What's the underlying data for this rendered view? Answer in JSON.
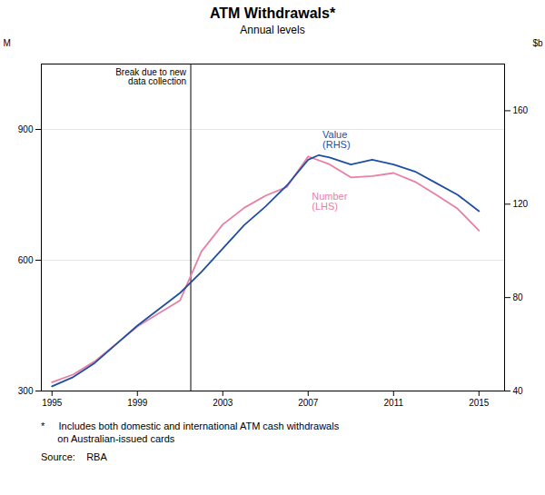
{
  "chart_data": {
    "type": "line",
    "title": "ATM Withdrawals*",
    "subtitle": "Annual levels",
    "ylabel": "M",
    "y2label": "$b",
    "footnotes": [
      "*     Includes both domestic and international ATM cash withdrawals",
      "      on Australian-issued cards"
    ],
    "source": "Source:    RBA",
    "xlim": [
      1994.5,
      2016.2
    ],
    "xticks": [
      1995,
      1999,
      2003,
      2007,
      2011,
      2015
    ],
    "ylim": [
      300,
      1050
    ],
    "yticks": [
      300,
      600,
      900
    ],
    "y2lim": [
      40,
      180
    ],
    "y2ticks": [
      40,
      80,
      120,
      160
    ],
    "grid": true,
    "series": [
      {
        "name": "Value\n(RHS)",
        "color": "#1f4fa0",
        "axis": "y2",
        "x": [
          1995,
          1996,
          1997,
          1998,
          1999,
          2000,
          2001,
          2002,
          2003,
          2004,
          2005,
          2006,
          2007,
          2007.5,
          2008,
          2009,
          2010,
          2011,
          2012,
          2013,
          2014,
          2015
        ],
        "values": [
          42,
          46,
          52,
          60,
          68,
          75,
          82,
          91,
          101,
          111,
          119,
          128,
          139,
          141,
          140,
          137,
          139,
          137,
          134,
          129,
          124,
          117
        ]
      },
      {
        "name": "Number\n(LHS)",
        "color": "#e87fa5",
        "axis": "y",
        "x": [
          1995,
          1996,
          1997,
          1998,
          1999,
          2000,
          2001,
          2002,
          2003,
          2004,
          2005,
          2006,
          2007,
          2008,
          2009,
          2010,
          2011,
          2012,
          2013,
          2014,
          2015
        ],
        "values": [
          320,
          338,
          368,
          408,
          448,
          478,
          508,
          620,
          682,
          720,
          748,
          768,
          838,
          820,
          790,
          793,
          800,
          780,
          750,
          718,
          668
        ]
      }
    ],
    "annotations": [
      {
        "type": "vline",
        "x": 2001.5,
        "text": "Break due to new\ndata collection"
      }
    ]
  }
}
